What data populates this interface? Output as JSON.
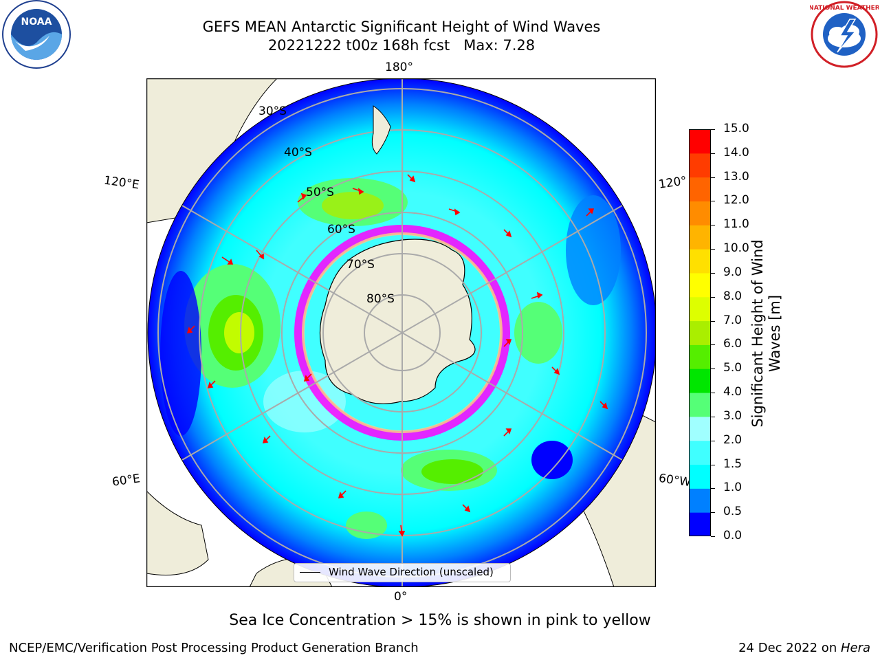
{
  "header": {
    "title_line1": "GEFS MEAN Antarctic Significant Height of Wind Waves",
    "title_line2": "20221222 t00z 168h fcst   Max: 7.28"
  },
  "map": {
    "projection": "south-polar-stereographic",
    "latitude_labels": [
      "30°S",
      "40°S",
      "50°S",
      "60°S",
      "70°S",
      "80°S"
    ],
    "longitude_labels": {
      "top": "180°",
      "bottom": "0°",
      "upper_left": "120°E",
      "lower_left": "60°E",
      "upper_right": "120°",
      "lower_right": "60°W"
    },
    "colors": {
      "land": "#efedda",
      "ocean_low": "#0000ff",
      "sea_ice": "#ff00ff",
      "arrows": "#ff0000",
      "grid": "#aaaaaa"
    },
    "legend": "Wind Wave Direction (unscaled)"
  },
  "colorbar": {
    "label": "Significant Height of Wind Waves [m]",
    "ticks": [
      "0.0",
      "0.5",
      "1.0",
      "1.5",
      "2.0",
      "3.0",
      "4.0",
      "5.0",
      "6.0",
      "7.0",
      "8.0",
      "9.0",
      "10.0",
      "11.0",
      "12.0",
      "13.0",
      "14.0",
      "15.0"
    ],
    "colors": [
      "#0000ff",
      "#0080ff",
      "#00ffff",
      "#40ffff",
      "#a0ffff",
      "#55ff77",
      "#00e600",
      "#55ee00",
      "#aaee00",
      "#ddff00",
      "#ffff00",
      "#ffe000",
      "#ffb400",
      "#ff8c00",
      "#ff6400",
      "#ff3c00",
      "#ff0000"
    ]
  },
  "footer": {
    "note": "Sea Ice Concentration > 15% is shown in pink to yellow",
    "credit": "NCEP/EMC/Verification Post Processing Product Generation Branch",
    "date_prefix": "24 Dec 2022 on ",
    "date_host": "Hera"
  },
  "logos": {
    "left": "noaa-logo",
    "right": "national-weather-service-logo",
    "right_text": "NATIONAL WEATHER SERVICE"
  }
}
